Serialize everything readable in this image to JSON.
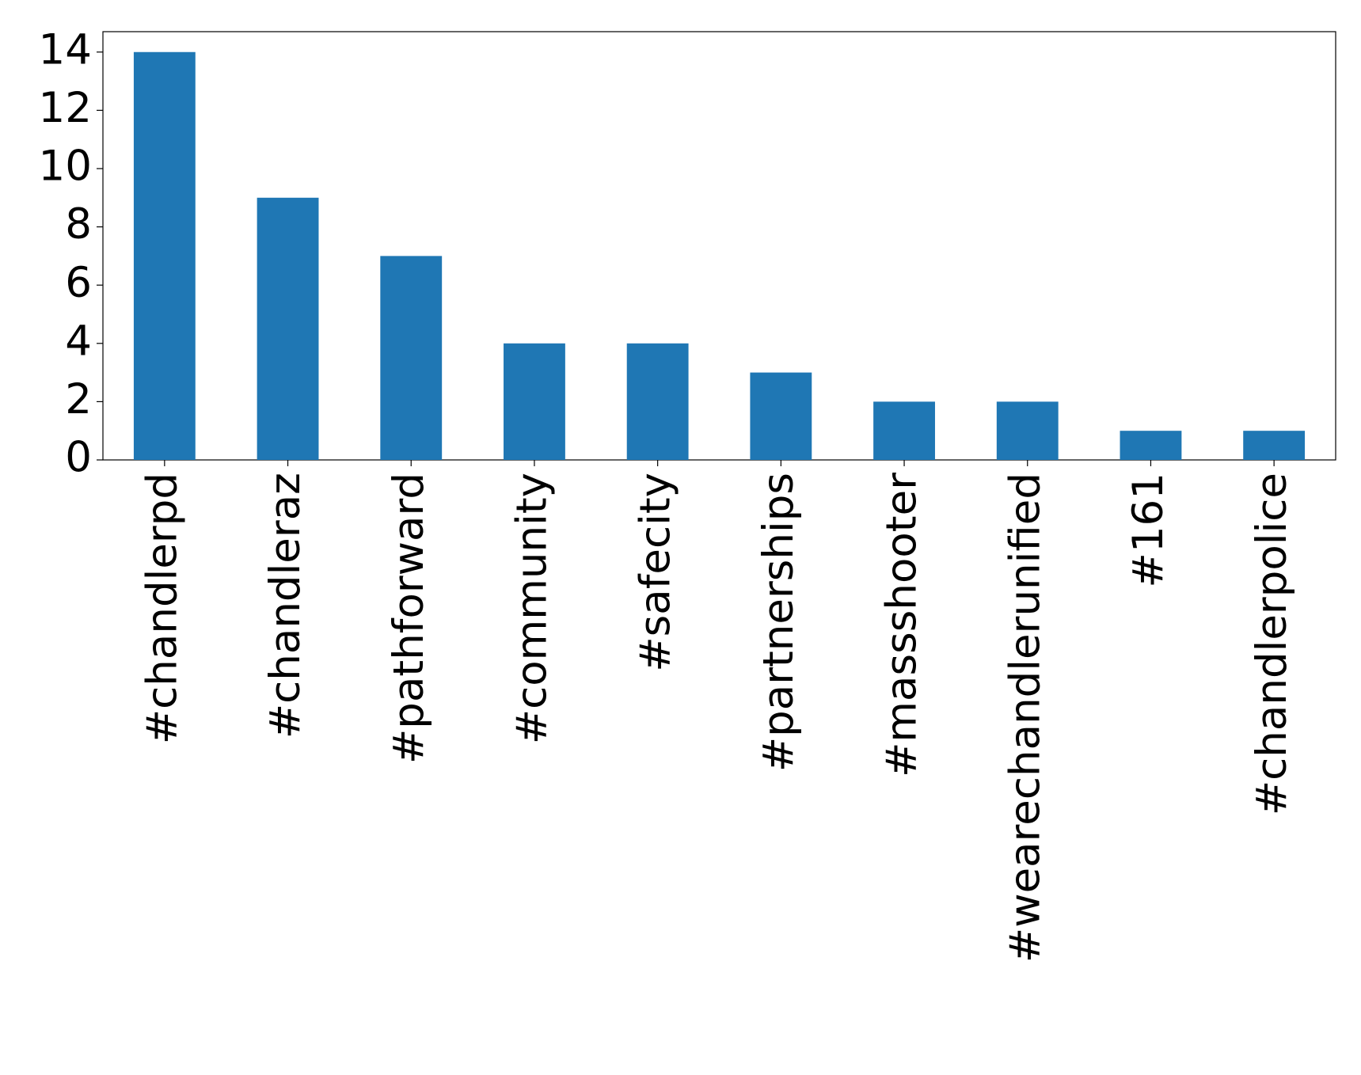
{
  "chart_data": {
    "type": "bar",
    "categories": [
      "#chandlerpd",
      "#chandleraz",
      "#pathforward",
      "#community",
      "#safecity",
      "#partnerships",
      "#massshooter",
      "#wearechandlerunified",
      "#161",
      "#chandlerpolice"
    ],
    "values": [
      14,
      9,
      7,
      4,
      4,
      3,
      2,
      2,
      1,
      1
    ],
    "color": "#1f77b4",
    "ylim": [
      0,
      14.7
    ],
    "yticks": [
      0,
      2,
      4,
      6,
      8,
      10,
      12,
      14
    ],
    "grid": false
  }
}
